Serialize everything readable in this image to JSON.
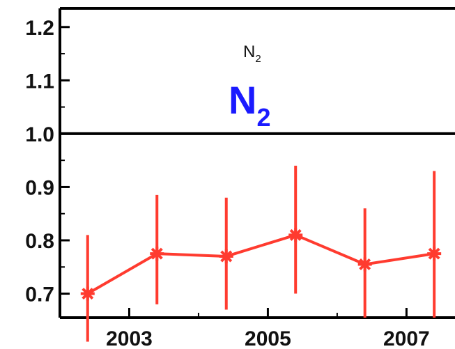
{
  "chart_data": {
    "type": "line",
    "title_small": {
      "main": "N",
      "sub": "2"
    },
    "title_large": {
      "main": "N",
      "sub": "2",
      "color": "#1a1aff"
    },
    "xlabel": "",
    "ylabel": "",
    "xlim": [
      2002,
      2007.7
    ],
    "ylim": [
      0.655,
      1.235
    ],
    "x_ticks": [
      "2003",
      "2005",
      "2007"
    ],
    "x_tick_values": [
      2003,
      2005,
      2007
    ],
    "y_ticks": [
      "0.7",
      "0.8",
      "0.9",
      "1.0",
      "1.1",
      "1.2"
    ],
    "y_tick_values": [
      0.7,
      0.8,
      0.9,
      1.0,
      1.1,
      1.2
    ],
    "reference_line": 1.0,
    "grid": false,
    "series": [
      {
        "color": "#ff3b2f",
        "marker": "asterisk",
        "x": [
          2002.4,
          2003.4,
          2004.4,
          2005.4,
          2006.4,
          2007.4
        ],
        "y": [
          0.7,
          0.775,
          0.77,
          0.81,
          0.755,
          0.775
        ],
        "err_low": [
          0.61,
          0.68,
          0.67,
          0.7,
          0.655,
          0.655
        ],
        "err_high": [
          0.81,
          0.885,
          0.88,
          0.94,
          0.86,
          0.93
        ]
      }
    ]
  }
}
